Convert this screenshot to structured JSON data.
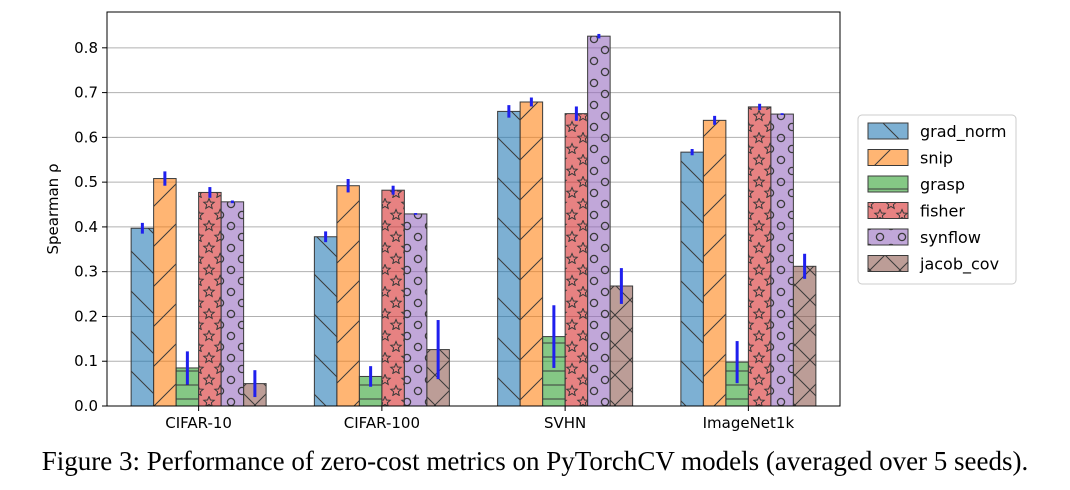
{
  "chart_data": {
    "type": "bar",
    "title": "",
    "xlabel": "",
    "ylabel": "Spearman ρ",
    "ylim": [
      0,
      0.88
    ],
    "yticks": [
      "0.0",
      "0.1",
      "0.2",
      "0.3",
      "0.4",
      "0.5",
      "0.6",
      "0.7",
      "0.8"
    ],
    "grid": "horizontal",
    "legend_position": "right",
    "categories": [
      "CIFAR-10",
      "CIFAR-100",
      "SVHN",
      "ImageNet1k"
    ],
    "series": [
      {
        "name": "grad_norm",
        "color": "#1f77b4",
        "hatch": "backslash",
        "values": [
          0.397,
          0.378,
          0.658,
          0.567
        ],
        "errors": [
          0.012,
          0.012,
          0.014,
          0.007
        ]
      },
      {
        "name": "snip",
        "color": "#ff7f0e",
        "hatch": "slash",
        "values": [
          0.508,
          0.492,
          0.679,
          0.638
        ],
        "errors": [
          0.016,
          0.015,
          0.01,
          0.01
        ]
      },
      {
        "name": "grasp",
        "color": "#2ca02c",
        "hatch": "horizontal",
        "values": [
          0.085,
          0.066,
          0.155,
          0.098
        ],
        "errors": [
          0.037,
          0.023,
          0.07,
          0.047
        ]
      },
      {
        "name": "fisher",
        "color": "#d62728",
        "hatch": "star",
        "values": [
          0.477,
          0.482,
          0.653,
          0.668
        ],
        "errors": [
          0.012,
          0.01,
          0.016,
          0.007
        ]
      },
      {
        "name": "synflow",
        "color": "#9467bd",
        "hatch": "circle",
        "values": [
          0.456,
          0.429,
          0.826,
          0.652
        ],
        "errors": [
          0.003,
          0.002,
          0.005,
          0.002
        ]
      },
      {
        "name": "jacob_cov",
        "color": "#8c564b",
        "hatch": "cross",
        "values": [
          0.05,
          0.126,
          0.268,
          0.312
        ],
        "errors": [
          0.03,
          0.066,
          0.04,
          0.028
        ]
      }
    ]
  },
  "caption": "Figure 3: Performance of zero-cost metrics on PyTorchCV models (averaged over 5 seeds)."
}
